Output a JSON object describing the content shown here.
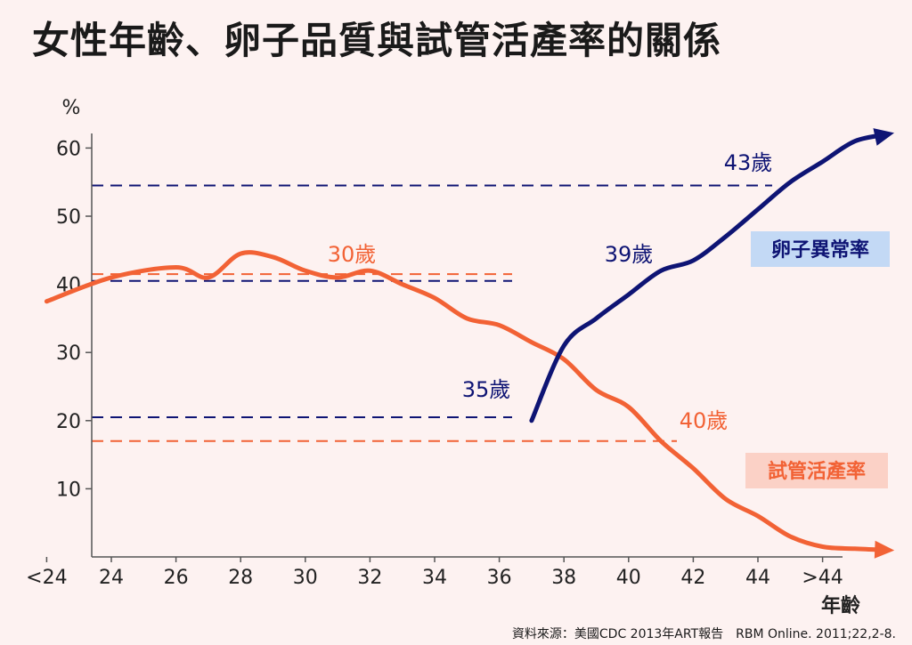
{
  "title": "女性年齡、卵子品質與試管活產率的關係",
  "source": "資料來源：美國CDC 2013年ART報告　RBM Online. 2011;22,2-8.",
  "colors": {
    "background": "#fdf2f1",
    "live_birth": "#f26235",
    "egg_abnormal": "#0e1474",
    "legend_blue_bg": "#c3d9f5",
    "legend_orange_bg": "#fbd1c6"
  },
  "chart_data": {
    "type": "line",
    "ylabel": "%",
    "xlabel": "年齡",
    "ylim": [
      0,
      60
    ],
    "yticks": [
      10,
      20,
      30,
      40,
      50,
      60
    ],
    "x_tick_labels": [
      "<24",
      "24",
      "26",
      "28",
      "30",
      "32",
      "34",
      "36",
      "38",
      "40",
      "42",
      "44",
      ">44"
    ],
    "grid": false,
    "series": [
      {
        "name": "試管活產率",
        "color": "#f26235",
        "x": [
          -1,
          0,
          1,
          1.5,
          2,
          2.5,
          3,
          3.5,
          4,
          4.5,
          5,
          5.5,
          6,
          6.5,
          7,
          7.5,
          8,
          8.5,
          9,
          9.5,
          10,
          10.5,
          11,
          11.5,
          12
        ],
        "y": [
          37.5,
          41,
          42.5,
          41,
          44.5,
          44,
          42,
          41,
          42,
          40,
          38,
          35,
          34,
          31.5,
          29,
          24.5,
          22,
          17,
          13,
          8.5,
          6,
          3,
          1.5,
          1.2,
          1
        ]
      },
      {
        "name": "卵子異常率",
        "color": "#0e1474",
        "x": [
          6.5,
          7,
          7.5,
          8,
          8.5,
          9,
          9.5,
          10,
          10.5,
          11,
          11.5,
          12
        ],
        "y": [
          20,
          31,
          35,
          38.5,
          42,
          43.5,
          47,
          51,
          55,
          58,
          61,
          62
        ]
      }
    ],
    "annotations": [
      {
        "text": "30歲",
        "color": "#f26235"
      },
      {
        "text": "35歲",
        "color": "#0e1474"
      },
      {
        "text": "39歲",
        "color": "#0e1474"
      },
      {
        "text": "43歲",
        "color": "#0e1474"
      },
      {
        "text": "40歲",
        "color": "#f26235"
      }
    ],
    "reference_lines": [
      {
        "y": 54.5,
        "color": "#0e1474"
      },
      {
        "y": 41.5,
        "color": "#f26235"
      },
      {
        "y": 40.5,
        "color": "#0e1474"
      },
      {
        "y": 20.5,
        "color": "#0e1474"
      },
      {
        "y": 17,
        "color": "#f26235"
      }
    ],
    "legend": [
      {
        "label": "卵子異常率",
        "color": "#0e1474"
      },
      {
        "label": "試管活產率",
        "color": "#f26235"
      }
    ]
  }
}
